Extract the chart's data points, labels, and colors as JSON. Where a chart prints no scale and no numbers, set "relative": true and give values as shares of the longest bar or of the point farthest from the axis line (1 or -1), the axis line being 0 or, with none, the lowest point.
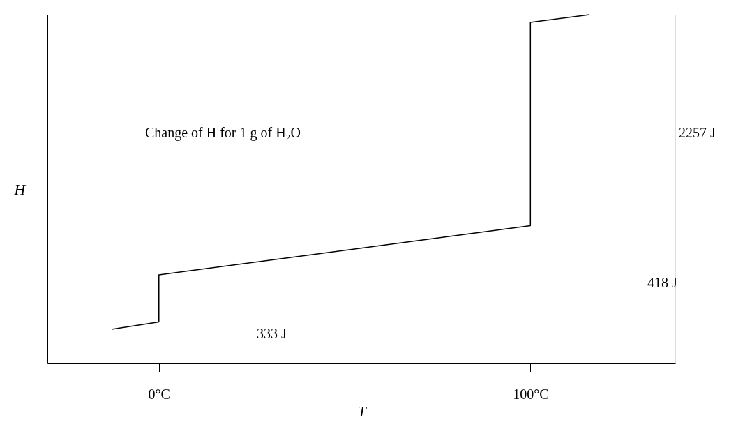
{
  "chart_data": {
    "type": "line",
    "relative": true,
    "xlabel": "T",
    "ylabel": "H",
    "xlim": [
      -30,
      139
    ],
    "xticks": [
      {
        "value": 0,
        "label": "0°C"
      },
      {
        "value": 100,
        "label": "100°C"
      }
    ],
    "grid": false,
    "legend": false,
    "marker": "none",
    "line_style": "solid",
    "series": [
      {
        "color": "#000000",
        "x": [
          -12.7,
          0,
          0,
          100,
          100,
          115.9
        ],
        "values": [
          0.098,
          0.119,
          0.254,
          0.395,
          0.978,
          1.0
        ]
      }
    ],
    "annotations": [
      "Change of H for 1 g of H₂O",
      "333 J",
      "418 J",
      "2257 J"
    ]
  }
}
